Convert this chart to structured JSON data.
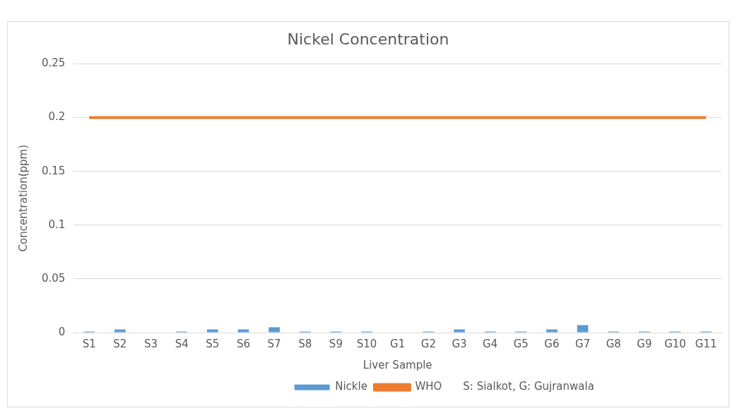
{
  "chart_data": {
    "type": "bar",
    "title": "Nickel Concentration",
    "xlabel": "Liver Sample",
    "ylabel": "Concentration(ppm)",
    "categories": [
      "S1",
      "S2",
      "S3",
      "S4",
      "S5",
      "S6",
      "S7",
      "S8",
      "S9",
      "S10",
      "G1",
      "G2",
      "G3",
      "G4",
      "G5",
      "G6",
      "G7",
      "G8",
      "G9",
      "G10",
      "G11"
    ],
    "series": [
      {
        "name": "Nickle",
        "color": "#5b9bd5",
        "values": [
          0.001,
          0.003,
          0,
          0.001,
          0.003,
          0.003,
          0.005,
          0.001,
          0.001,
          0.001,
          0,
          0.001,
          0.003,
          0.001,
          0.001,
          0.003,
          0.007,
          0.001,
          0.001,
          0.001,
          0.001
        ]
      },
      {
        "name": "WHO",
        "type": "line",
        "color": "#ed7d31",
        "values": [
          0.2,
          0.2,
          0.2,
          0.2,
          0.2,
          0.2,
          0.2,
          0.2,
          0.2,
          0.2,
          0.2,
          0.2,
          0.2,
          0.2,
          0.2,
          0.2,
          0.2,
          0.2,
          0.2,
          0.2,
          0.2
        ]
      }
    ],
    "ylim": [
      0,
      0.25
    ],
    "yticks": [
      0,
      0.05,
      0.1,
      0.15,
      0.2,
      0.25
    ],
    "grid": "y",
    "legend": "bottom",
    "marker": "none",
    "annotations": [
      "S: Sialkot, G: Gujranwala"
    ]
  }
}
